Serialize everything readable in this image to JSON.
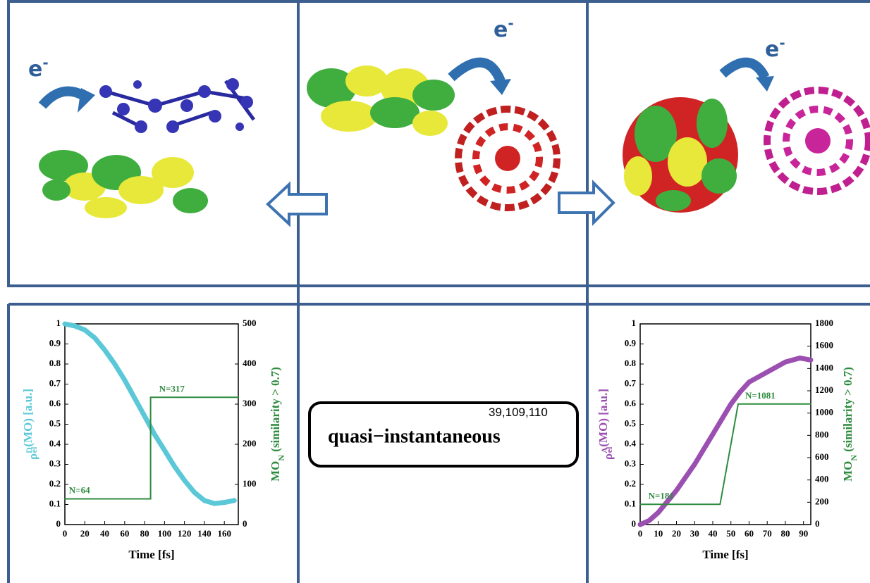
{
  "labels": {
    "electron": [
      {
        "base": "e",
        "sup": "-"
      },
      {
        "base": "e",
        "sup": "-"
      },
      {
        "base": "e",
        "sup": "-"
      }
    ],
    "box_text": "quasi−instantaneous",
    "box_refs": "39,109,110"
  },
  "chart_data": [
    {
      "type": "line",
      "xlabel": "Time [fs]",
      "ylabel": {
        "base": "ρ",
        "sup": "D",
        "sub": "el",
        "rest": "(MO) [a.u.]"
      },
      "y2label": {
        "base": "MO",
        "sub": "N",
        "rest": " (similarity > 0.7)"
      },
      "xlim": [
        0,
        174
      ],
      "xticks": [
        0,
        20,
        40,
        60,
        80,
        100,
        120,
        140,
        160
      ],
      "ylim": [
        0,
        1
      ],
      "yticks": [
        0,
        0.1,
        0.2,
        0.3,
        0.4,
        0.5,
        0.6,
        0.7,
        0.8,
        0.9,
        1
      ],
      "y2lim": [
        0,
        500
      ],
      "y2ticks": [
        0,
        100,
        200,
        300,
        400,
        500
      ],
      "series": [
        {
          "color": "#5bc8d8",
          "x": [
            0,
            10,
            20,
            30,
            40,
            50,
            60,
            70,
            80,
            90,
            100,
            110,
            120,
            130,
            140,
            150,
            160,
            170
          ],
          "values": [
            1.0,
            0.99,
            0.97,
            0.93,
            0.87,
            0.8,
            0.72,
            0.63,
            0.54,
            0.45,
            0.37,
            0.29,
            0.22,
            0.16,
            0.12,
            0.105,
            0.11,
            0.12
          ]
        },
        {
          "color": "#2e8b3e",
          "axis": "y2",
          "x": [
            0,
            86,
            86,
            174
          ],
          "values": [
            64,
            64,
            317,
            317
          ]
        }
      ],
      "annotations": [
        "N=64",
        "N=317"
      ]
    },
    {
      "type": "line",
      "xlabel": "Time [fs]",
      "ylabel": {
        "base": "ρ",
        "sup": "A",
        "sub": "el",
        "rest": "(MO) [a.u.]"
      },
      "y2label": {
        "base": "MO",
        "sub": "N",
        "rest": " (similarity > 0.7)"
      },
      "xlim": [
        0,
        94
      ],
      "xticks": [
        0,
        10,
        20,
        30,
        40,
        50,
        60,
        70,
        80,
        90
      ],
      "ylim": [
        0,
        1
      ],
      "yticks": [
        0,
        0.1,
        0.2,
        0.3,
        0.4,
        0.5,
        0.6,
        0.7,
        0.8,
        0.9,
        1
      ],
      "y2lim": [
        0,
        1800
      ],
      "y2ticks": [
        0,
        200,
        400,
        600,
        800,
        1000,
        1200,
        1400,
        1600,
        1800
      ],
      "series": [
        {
          "color": "#9b4fb0",
          "x": [
            0,
            5,
            10,
            20,
            30,
            40,
            50,
            55,
            60,
            70,
            80,
            88,
            94
          ],
          "values": [
            0,
            0.02,
            0.06,
            0.17,
            0.3,
            0.45,
            0.6,
            0.66,
            0.71,
            0.76,
            0.81,
            0.83,
            0.82
          ]
        },
        {
          "color": "#2e8b3e",
          "axis": "y2",
          "x": [
            0,
            44,
            54,
            94
          ],
          "values": [
            181,
            181,
            1081,
            1081
          ]
        }
      ],
      "annotations": [
        "N=181",
        "N=1081"
      ]
    }
  ]
}
